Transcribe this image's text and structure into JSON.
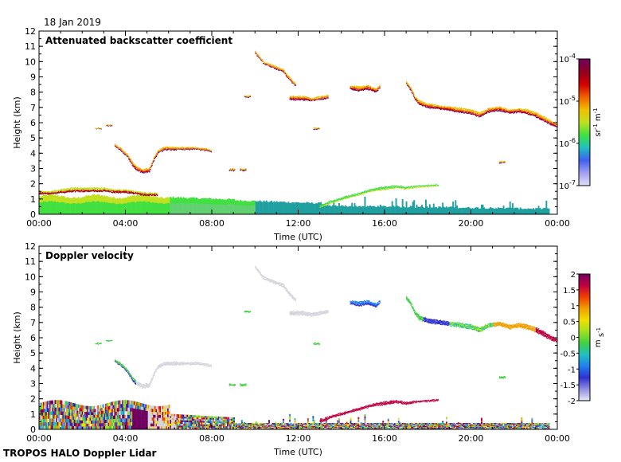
{
  "header": {
    "date": "18 Jan 2019"
  },
  "footer": {
    "credit": "TROPOS HALO Doppler Lidar"
  },
  "chart_data": [
    {
      "type": "heatmap",
      "title": "Attenuated backscatter coefficient",
      "xlabel": "Time (UTC)",
      "ylabel": "Height (km)",
      "x_ticks": [
        "00:00",
        "04:00",
        "08:00",
        "12:00",
        "16:00",
        "20:00",
        "00:00"
      ],
      "xlim_hours": [
        0,
        24
      ],
      "ylim": [
        0,
        12
      ],
      "y_ticks": [
        0,
        1,
        2,
        3,
        4,
        5,
        6,
        7,
        8,
        9,
        10,
        11,
        12
      ],
      "colorbar": {
        "label": "sr-1 m-1",
        "scale": "log",
        "range": [
          1e-07,
          0.0001
        ],
        "tick_values": [
          0.0001,
          1e-05,
          1e-06,
          1e-07
        ],
        "tick_base": "10",
        "tick_exponents": [
          "-4",
          "-5",
          "-6",
          "-7"
        ],
        "label_parts": [
          "sr",
          "-1",
          " m",
          "-1"
        ]
      },
      "features": [
        {
          "name": "boundary layer",
          "t0": 0.0,
          "t1": 23.5,
          "h0": 0.0,
          "h1": 1.1
        },
        {
          "name": "low cloud",
          "t0": 0.0,
          "t1": 5.8,
          "h0": 1.2,
          "h1": 1.7
        },
        {
          "name": "mid cloud",
          "t0": 3.8,
          "t1": 8.0,
          "h0": 2.5,
          "h1": 4.5
        },
        {
          "name": "high cloud",
          "t0": 10.0,
          "t1": 24.0,
          "h0": 5.8,
          "h1": 10.6
        }
      ]
    },
    {
      "type": "heatmap",
      "title": "Doppler velocity",
      "xlabel": "Time (UTC)",
      "ylabel": "Height (km)",
      "x_ticks": [
        "00:00",
        "04:00",
        "08:00",
        "12:00",
        "16:00",
        "20:00",
        "00:00"
      ],
      "xlim_hours": [
        0,
        24
      ],
      "ylim": [
        0,
        12
      ],
      "y_ticks": [
        0,
        1,
        2,
        3,
        4,
        5,
        6,
        7,
        8,
        9,
        10,
        11,
        12
      ],
      "colorbar": {
        "label": "m s-1",
        "scale": "linear",
        "range": [
          -2,
          2
        ],
        "tick_values": [
          2,
          1.5,
          1,
          0.5,
          0,
          -0.5,
          -1,
          -1.5,
          -2
        ],
        "tick_labels": [
          "2",
          "1.5",
          "1",
          "0.5",
          "0",
          "-0.5",
          "-1",
          "-1.5",
          "-2"
        ],
        "label_parts": [
          "m",
          " s",
          "-1"
        ]
      }
    }
  ],
  "colors": {
    "backscatter_scale": [
      "#e0e0f8",
      "#a0a0f0",
      "#4060f0",
      "#20c0c0",
      "#40e040",
      "#c0e020",
      "#f0c000",
      "#f06000",
      "#d00000",
      "#900020",
      "#700060"
    ],
    "velocity_scale": [
      "#e8e8f8",
      "#9090e0",
      "#3030d0",
      "#2080f0",
      "#20c0c0",
      "#40d040",
      "#a0e020",
      "#f0e000",
      "#f0a000",
      "#f04000",
      "#c00040",
      "#700060"
    ],
    "teal": "#20a0a0",
    "grey_cloud": "#d4d4dc"
  }
}
